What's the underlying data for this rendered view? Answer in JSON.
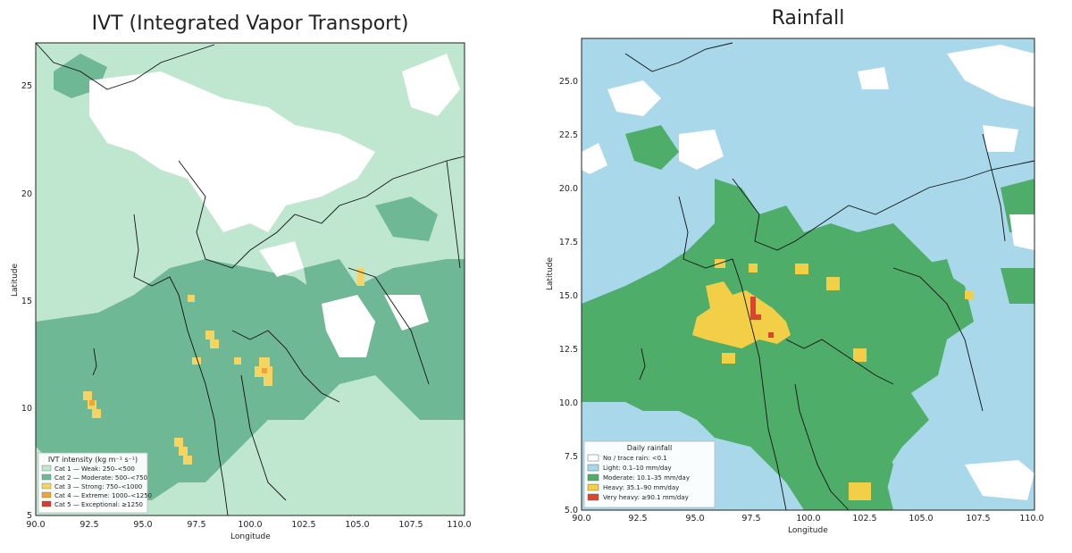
{
  "left_panel": {
    "title": "IVT (Integrated Vapor Transport)",
    "xlabel": "Longitude",
    "ylabel": "Latitude",
    "xlim": [
      90.0,
      110.0
    ],
    "ylim": [
      5,
      27
    ],
    "x_ticks": [
      "90.0",
      "92.5",
      "95.0",
      "97.5",
      "100.0",
      "102.5",
      "105.0",
      "107.5",
      "110.0"
    ],
    "y_ticks": [
      "5",
      "10",
      "15",
      "20",
      "25"
    ],
    "legend": {
      "title": "IVT intensity (kg m⁻¹ s⁻¹)",
      "location": "lower-left",
      "items": [
        {
          "label": "Cat 1 — Weak: 250–<500",
          "color": "#bfe6cf"
        },
        {
          "label": "Cat 2 — Moderate: 500–<750",
          "color": "#6fb896"
        },
        {
          "label": "Cat 3 — Strong: 750–<1000",
          "color": "#f5d461"
        },
        {
          "label": "Cat 4 — Extreme: 1000–<1250",
          "color": "#f0a339"
        },
        {
          "label": "Cat 5 — Exceptional: ≥1250",
          "color": "#d63b2b"
        }
      ]
    }
  },
  "right_panel": {
    "title": "Rainfall",
    "xlabel": "Longitude",
    "ylabel": "Latitude",
    "xlim": [
      90.0,
      110.0
    ],
    "ylim": [
      5.0,
      27.0
    ],
    "x_ticks": [
      "90.0",
      "92.5",
      "95.0",
      "97.5",
      "100.0",
      "102.5",
      "105.0",
      "107.5",
      "110.0"
    ],
    "y_ticks": [
      "5.0",
      "7.5",
      "10.0",
      "12.5",
      "15.0",
      "17.5",
      "20.0",
      "22.5",
      "25.0"
    ],
    "legend": {
      "title": "Daily rainfall",
      "location": "lower-left",
      "items": [
        {
          "label": "No / trace rain: <0.1",
          "color": "#ffffff"
        },
        {
          "label": "Light: 0.1–10 mm/day",
          "color": "#a8d8ea"
        },
        {
          "label": "Moderate: 10.1–35 mm/day",
          "color": "#4fad6a"
        },
        {
          "label": "Heavy: 35.1–90 mm/day",
          "color": "#f3cf48"
        },
        {
          "label": "Very heavy: ≥90.1 mm/day",
          "color": "#d9452f"
        }
      ]
    }
  }
}
